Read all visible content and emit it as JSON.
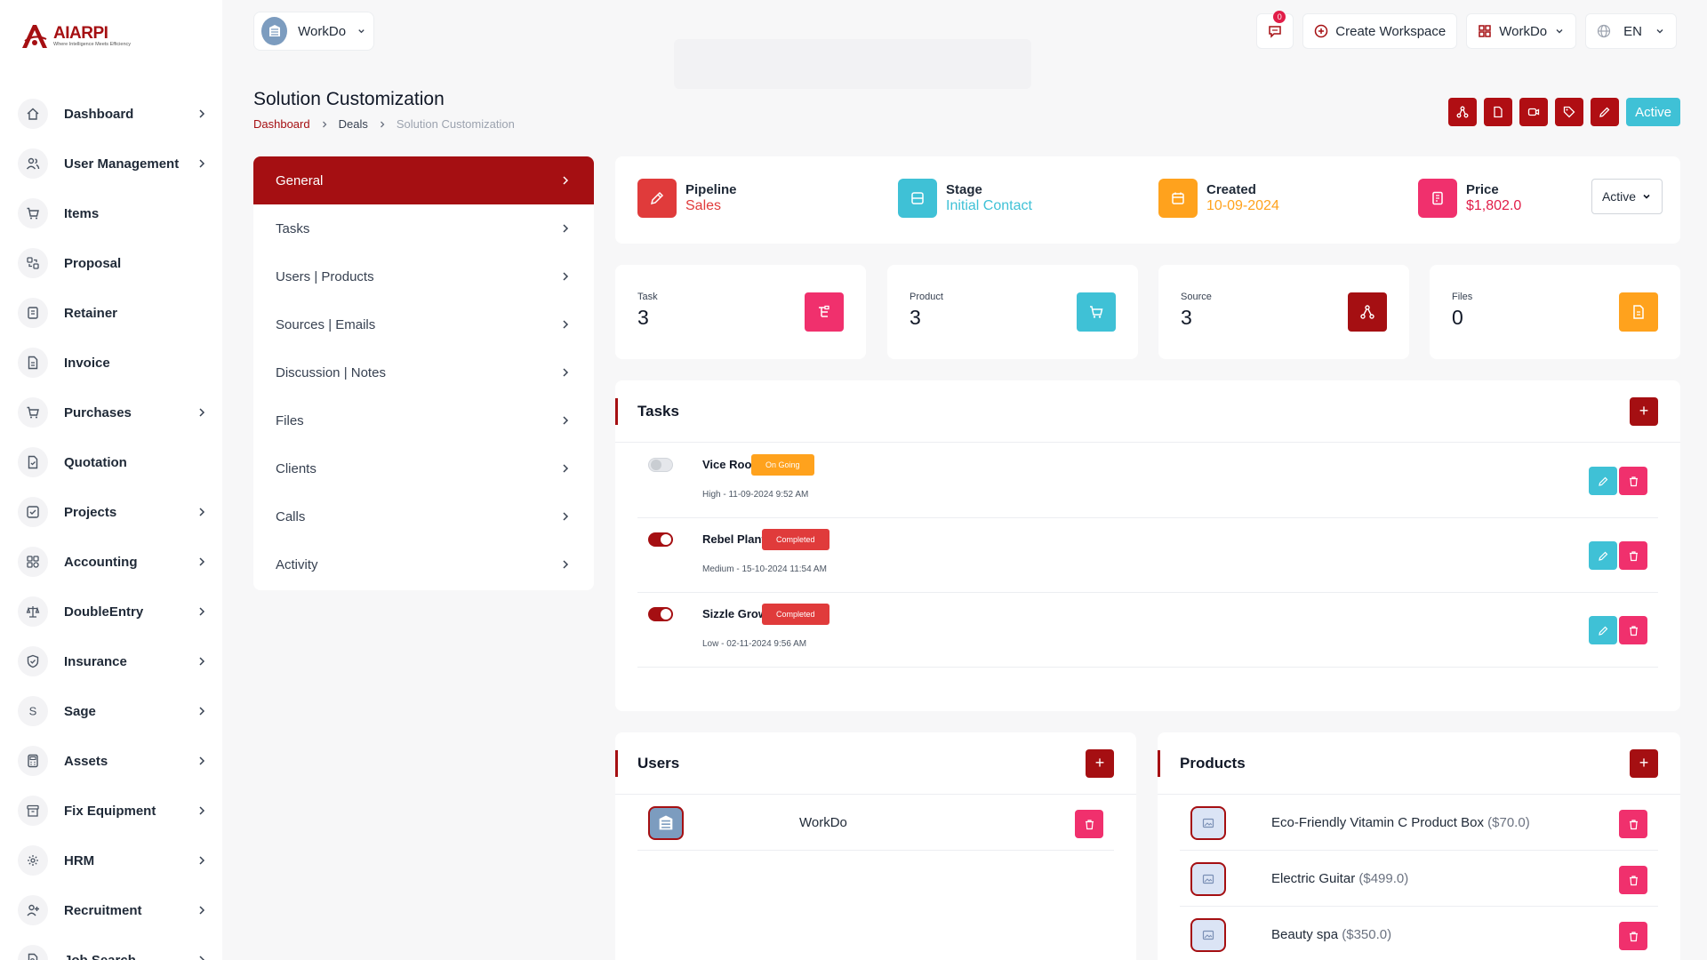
{
  "brand": {
    "name": "AIARPI",
    "tagline": "Where Intelligence Meets Efficiency"
  },
  "sidebar": {
    "items": [
      {
        "label": "Dashboard",
        "icon": "home-icon",
        "chevron": true
      },
      {
        "label": "User Management",
        "icon": "users-icon",
        "chevron": true
      },
      {
        "label": "Items",
        "icon": "cart-icon",
        "chevron": false
      },
      {
        "label": "Proposal",
        "icon": "proposal-icon",
        "chevron": false
      },
      {
        "label": "Retainer",
        "icon": "retainer-icon",
        "chevron": false
      },
      {
        "label": "Invoice",
        "icon": "invoice-icon",
        "chevron": false
      },
      {
        "label": "Purchases",
        "icon": "purchases-icon",
        "chevron": true
      },
      {
        "label": "Quotation",
        "icon": "quotation-icon",
        "chevron": false
      },
      {
        "label": "Projects",
        "icon": "projects-icon",
        "chevron": true
      },
      {
        "label": "Accounting",
        "icon": "accounting-icon",
        "chevron": true
      },
      {
        "label": "DoubleEntry",
        "icon": "scale-icon",
        "chevron": true
      },
      {
        "label": "Insurance",
        "icon": "shield-icon",
        "chevron": true
      },
      {
        "label": "Sage",
        "icon": "sage-icon",
        "chevron": true
      },
      {
        "label": "Assets",
        "icon": "calculator-icon",
        "chevron": true
      },
      {
        "label": "Fix Equipment",
        "icon": "archive-icon",
        "chevron": true
      },
      {
        "label": "HRM",
        "icon": "hrm-icon",
        "chevron": true
      },
      {
        "label": "Recruitment",
        "icon": "user-plus-icon",
        "chevron": true
      },
      {
        "label": "Job Search",
        "icon": "job-search-icon",
        "chevron": true
      }
    ]
  },
  "topbar": {
    "workspace_name": "WorkDo",
    "notification_count": "0",
    "create_workspace": "Create Workspace",
    "workspace_menu": "WorkDo",
    "language": "EN"
  },
  "page": {
    "title": "Solution Customization",
    "breadcrumb": [
      "Dashboard",
      "Deals",
      "Solution Customization"
    ],
    "status_button": "Active"
  },
  "menu": {
    "items": [
      "General",
      "Tasks",
      "Users | Products",
      "Sources | Emails",
      "Discussion | Notes",
      "Files",
      "Clients",
      "Calls",
      "Activity"
    ]
  },
  "info": {
    "pipeline_label": "Pipeline",
    "pipeline_value": "Sales",
    "stage_label": "Stage",
    "stage_value": "Initial Contact",
    "created_label": "Created",
    "created_value": "10-09-2024",
    "price_label": "Price",
    "price_value": "$1,802.0",
    "status_select": "Active"
  },
  "stats": [
    {
      "label": "Task",
      "value": "3",
      "color": "#f0306d"
    },
    {
      "label": "Product",
      "value": "3",
      "color": "#3fc1d6"
    },
    {
      "label": "Source",
      "value": "3",
      "color": "#a50f12"
    },
    {
      "label": "Files",
      "value": "0",
      "color": "#ffa21d"
    }
  ],
  "tasks": {
    "title": "Tasks",
    "rows": [
      {
        "name": "Vice Root",
        "status": "On Going",
        "status_color": "#ffa21d",
        "meta": "High - 11-09-2024 9:52 AM",
        "done": false
      },
      {
        "name": "Rebel Plant",
        "status": "Completed",
        "status_color": "#e03b3b",
        "meta": "Medium - 15-10-2024 11:54 AM",
        "done": true
      },
      {
        "name": "Sizzle Grow",
        "status": "Completed",
        "status_color": "#e03b3b",
        "meta": "Low - 02-11-2024 9:56 AM",
        "done": true
      }
    ]
  },
  "users": {
    "title": "Users",
    "rows": [
      {
        "name": "WorkDo"
      }
    ]
  },
  "products": {
    "title": "Products",
    "rows": [
      {
        "name": "Eco-Friendly Vitamin C Product Box",
        "price": "($70.0)"
      },
      {
        "name": "Electric Guitar",
        "price": "($499.0)"
      },
      {
        "name": "Beauty spa",
        "price": "($350.0)"
      }
    ]
  },
  "colors": {
    "brand": "#a50f12",
    "accent": "#3fc1d6",
    "danger": "#f0306d",
    "warning": "#ffa21d"
  }
}
